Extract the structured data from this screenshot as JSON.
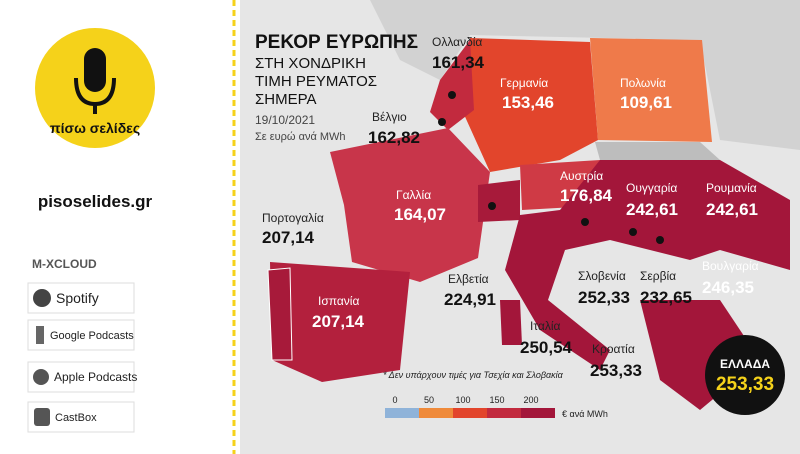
{
  "brand": {
    "logo_text": "πίσω σελίδες",
    "website": "pisoselides.gr",
    "platforms": [
      "M-XCLOUD",
      "Spotify",
      "Google Podcasts",
      "Apple Podcasts",
      "CastBox"
    ]
  },
  "map": {
    "title_lines": [
      "ΡΕΚΟΡ ΕΥΡΩΠΗΣ",
      "ΣΤΗ ΧΟΝΔΡΙΚΗ",
      "ΤΙΜΗ ΡΕΥΜΑΤΟΣ",
      "ΣΗΜΕΡΑ"
    ],
    "date": "19/10/2021",
    "unit": "Σε ευρώ ανά MWh",
    "countries": [
      {
        "name": "Ολλανδία",
        "value": "161,34"
      },
      {
        "name": "Γερμανία",
        "value": "153,46"
      },
      {
        "name": "Πολωνία",
        "value": "109,61"
      },
      {
        "name": "Βέλγιο",
        "value": "162,82"
      },
      {
        "name": "Γαλλία",
        "value": "164,07"
      },
      {
        "name": "Πορτογαλία",
        "value": "207,14"
      },
      {
        "name": "Ισπανία",
        "value": "207,14"
      },
      {
        "name": "Αυστρία",
        "value": "176,84"
      },
      {
        "name": "Ουγγαρία",
        "value": "242,61"
      },
      {
        "name": "Ρουμανία",
        "value": "242,61"
      },
      {
        "name": "Ελβετία",
        "value": "224,91"
      },
      {
        "name": "Σλοβενία",
        "value": "252,33"
      },
      {
        "name": "Σερβία",
        "value": "232,65"
      },
      {
        "name": "Βουλγαρία",
        "value": "246,35"
      },
      {
        "name": "Ιταλία",
        "value": "250,54"
      },
      {
        "name": "Κροατία",
        "value": "253,33"
      }
    ],
    "greece": {
      "name": "ΕΛΛΑΔΑ",
      "value": "253,33"
    },
    "footnote": "* Δεν υπάρχουν τιμές για Τσεχία και Σλοβακία",
    "legend": {
      "ticks": [
        0,
        50,
        100,
        150,
        200
      ],
      "unit": "€ ανά MWh"
    }
  }
}
